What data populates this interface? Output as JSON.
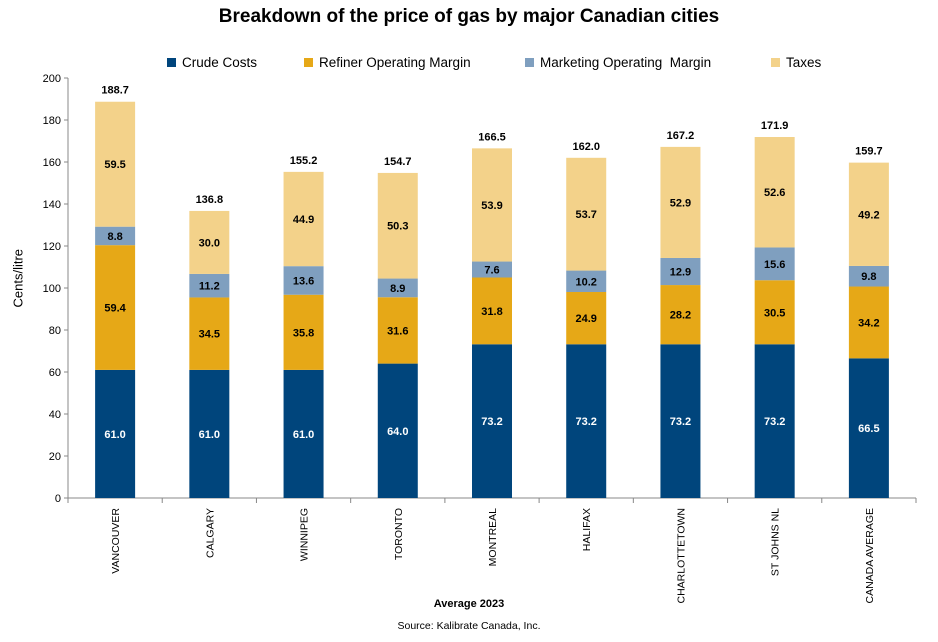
{
  "chart_data": {
    "type": "bar",
    "stacked": true,
    "title": "Breakdown of the price of gas by major Canadian cities",
    "xlabel": "Average 2023",
    "ylabel": "Cents/litre",
    "source": "Source: Kalibrate Canada, Inc.",
    "ylim": [
      0,
      200
    ],
    "yticks": [
      0,
      20,
      40,
      60,
      80,
      100,
      120,
      140,
      160,
      180,
      200
    ],
    "grid": false,
    "legend_position": "top",
    "categories": [
      "VANCOUVER",
      "CALGARY",
      "WINNIPEG",
      "TORONTO",
      "MONTREAL",
      "HALIFAX",
      "CHARLOTTETOWN",
      "ST JOHNS NL",
      "CANADA AVERAGE"
    ],
    "series": [
      {
        "name": "Crude Costs",
        "color": "#00457c",
        "label_color": "#ffffff",
        "values": [
          61.0,
          61.0,
          61.0,
          64.0,
          73.2,
          73.2,
          73.2,
          73.2,
          66.5
        ]
      },
      {
        "name": "Refiner Operating Margin",
        "color": "#e6a817",
        "label_color": "#000000",
        "values": [
          59.4,
          34.5,
          35.8,
          31.6,
          31.8,
          24.9,
          28.2,
          30.5,
          34.2
        ]
      },
      {
        "name": "Marketing Operating  Margin",
        "color": "#7f9fbf",
        "label_color": "#000000",
        "values": [
          8.8,
          11.2,
          13.6,
          8.9,
          7.6,
          10.2,
          12.9,
          15.6,
          9.8
        ]
      },
      {
        "name": "Taxes",
        "color": "#f3d28a",
        "label_color": "#000000",
        "values": [
          59.5,
          30.0,
          44.9,
          50.3,
          53.9,
          53.7,
          52.9,
          52.6,
          49.2
        ]
      }
    ],
    "totals": [
      188.7,
      136.8,
      155.2,
      154.7,
      166.5,
      162.0,
      167.2,
      171.9,
      159.7
    ]
  }
}
